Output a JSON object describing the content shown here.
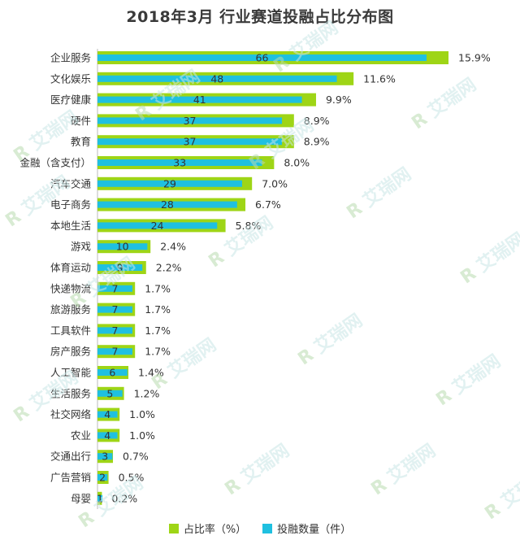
{
  "chart_data": {
    "type": "bar",
    "orientation": "horizontal",
    "title": "2018年3月 行业赛道投融占比分布图",
    "categories": [
      "企业服务",
      "文化娱乐",
      "医疗健康",
      "硬件",
      "教育",
      "金融（含支付）",
      "汽车交通",
      "电子商务",
      "本地生活",
      "游戏",
      "体育运动",
      "快递物流",
      "旅游服务",
      "工具软件",
      "房产服务",
      "人工智能",
      "生活服务",
      "社交网络",
      "农业",
      "交通出行",
      "广告营销",
      "母婴"
    ],
    "series": [
      {
        "name": "占比率（%）",
        "color": "#9ed516",
        "values": [
          15.9,
          11.6,
          9.9,
          8.9,
          8.9,
          8.0,
          7.0,
          6.7,
          5.8,
          2.4,
          2.2,
          1.7,
          1.7,
          1.7,
          1.7,
          1.4,
          1.2,
          1.0,
          1.0,
          0.7,
          0.5,
          0.2
        ],
        "labels": [
          "15.9%",
          "11.6%",
          "9.9%",
          "8.9%",
          "8.9%",
          "8.0%",
          "7.0%",
          "6.7%",
          "5.8%",
          "2.4%",
          "2.2%",
          "1.7%",
          "1.7%",
          "1.7%",
          "1.7%",
          "1.4%",
          "1.2%",
          "1.0%",
          "1.0%",
          "0.7%",
          "0.5%",
          "0.2%"
        ]
      },
      {
        "name": "投融数量（件）",
        "color": "#1fc0e0",
        "values": [
          66,
          48,
          41,
          37,
          37,
          33,
          29,
          28,
          24,
          10,
          9,
          7,
          7,
          7,
          7,
          6,
          5,
          4,
          4,
          3,
          2,
          1
        ]
      }
    ],
    "legend": "bottom",
    "grid": false
  },
  "watermark": {
    "mark": "R",
    "text": "艾瑞网"
  }
}
